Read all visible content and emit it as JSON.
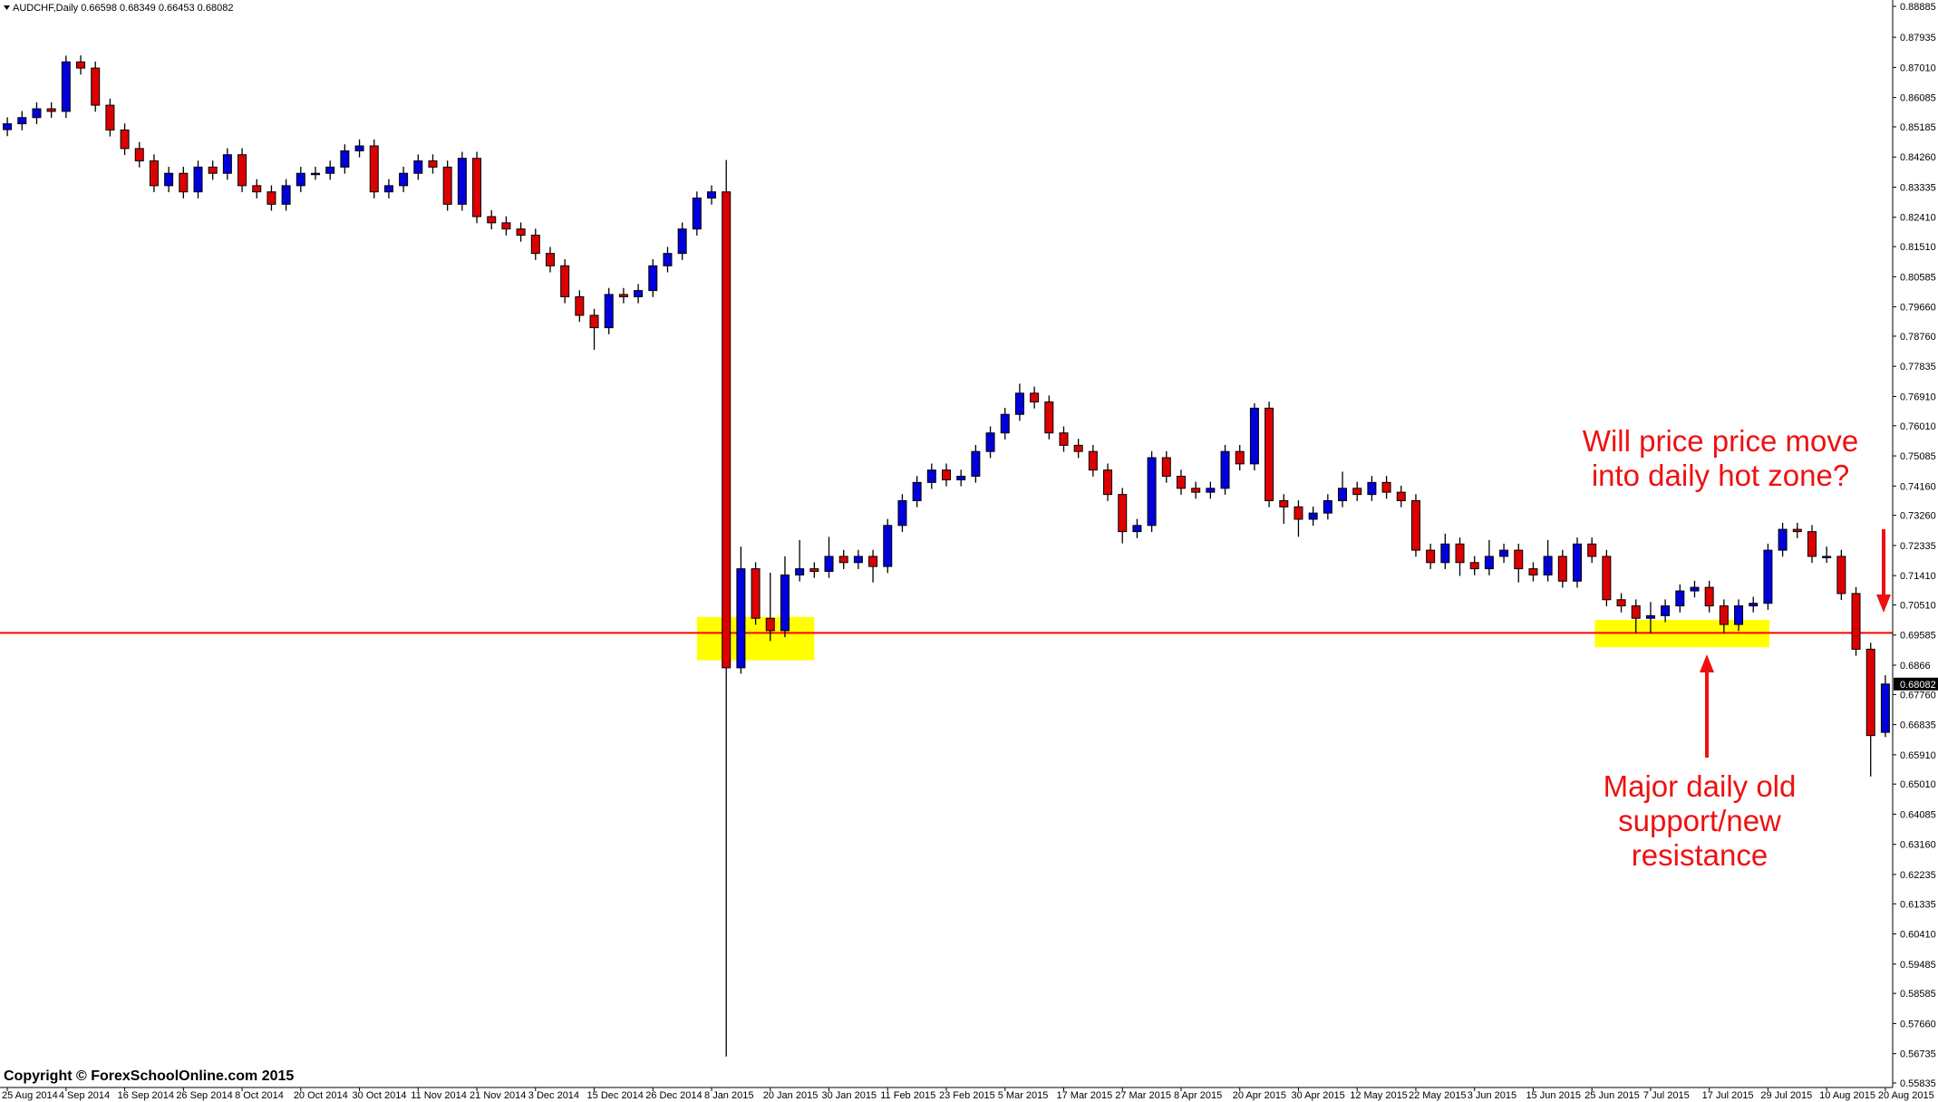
{
  "chart_data": {
    "type": "candlestick",
    "title": "AUDCHF,Daily",
    "candles": {
      "open": [
        0.851,
        0.8528,
        0.8547,
        0.8574,
        0.8566,
        0.8718,
        0.8699,
        0.8585,
        0.8509,
        0.8452,
        0.8414,
        0.8338,
        0.8376,
        0.8319,
        0.8395,
        0.8376,
        0.8433,
        0.8338,
        0.8319,
        0.8281,
        0.8338,
        0.8376,
        0.8376,
        0.8395,
        0.8445,
        0.846,
        0.8319,
        0.8338,
        0.8376,
        0.8414,
        0.8395,
        0.8281,
        0.8422,
        0.8243,
        0.8224,
        0.8205,
        0.8186,
        0.813,
        0.8092,
        0.7997,
        0.794,
        0.7902,
        0.8004,
        0.7997,
        0.8016,
        0.8092,
        0.813,
        0.8205,
        0.83,
        0.8319,
        0.6858,
        0.7162,
        0.701,
        0.6972,
        0.7143,
        0.7162,
        0.7154,
        0.72,
        0.7181,
        0.72,
        0.7169,
        0.7295,
        0.7371,
        0.7427,
        0.7465,
        0.7435,
        0.7446,
        0.7522,
        0.7579,
        0.7636,
        0.7701,
        0.7674,
        0.7579,
        0.7541,
        0.7522,
        0.7465,
        0.739,
        0.7276,
        0.7295,
        0.7503,
        0.7446,
        0.7409,
        0.7397,
        0.7409,
        0.7522,
        0.7484,
        0.7655,
        0.7371,
        0.7352,
        0.7314,
        0.7333,
        0.7371,
        0.7409,
        0.739,
        0.7427,
        0.7397,
        0.7371,
        0.7219,
        0.7181,
        0.7238,
        0.7181,
        0.7162,
        0.72,
        0.7219,
        0.7162,
        0.7143,
        0.72,
        0.7124,
        0.7238,
        0.72,
        0.7067,
        0.7048,
        0.701,
        0.7018,
        0.7048,
        0.7094,
        0.7105,
        0.7048,
        0.6991,
        0.7048,
        0.7056,
        0.7219,
        0.7283,
        0.7276,
        0.72,
        0.72,
        0.7086,
        0.6915,
        0.66598
      ],
      "high": [
        0.8548,
        0.8567,
        0.8594,
        0.8594,
        0.8737,
        0.8738,
        0.8719,
        0.8605,
        0.8529,
        0.8472,
        0.8434,
        0.8396,
        0.8396,
        0.8415,
        0.8415,
        0.8453,
        0.8453,
        0.8358,
        0.8339,
        0.8358,
        0.8396,
        0.8396,
        0.8415,
        0.8465,
        0.848,
        0.848,
        0.8358,
        0.8396,
        0.8434,
        0.8434,
        0.8415,
        0.8442,
        0.8442,
        0.8263,
        0.8244,
        0.8225,
        0.8206,
        0.815,
        0.8112,
        0.8017,
        0.796,
        0.8024,
        0.8024,
        0.8036,
        0.8112,
        0.815,
        0.8225,
        0.832,
        0.8339,
        0.8417,
        0.723,
        0.7182,
        0.715,
        0.72,
        0.725,
        0.7182,
        0.726,
        0.722,
        0.722,
        0.722,
        0.7315,
        0.7391,
        0.7447,
        0.7485,
        0.7485,
        0.7466,
        0.7542,
        0.7599,
        0.7656,
        0.773,
        0.7721,
        0.7694,
        0.7599,
        0.7561,
        0.7542,
        0.7485,
        0.741,
        0.7315,
        0.7523,
        0.7523,
        0.7466,
        0.7429,
        0.7429,
        0.7542,
        0.7542,
        0.767,
        0.7675,
        0.7391,
        0.7372,
        0.7353,
        0.7391,
        0.746,
        0.7429,
        0.7447,
        0.7447,
        0.7417,
        0.7391,
        0.7239,
        0.727,
        0.7258,
        0.7201,
        0.725,
        0.7239,
        0.7239,
        0.7182,
        0.725,
        0.722,
        0.7258,
        0.7258,
        0.722,
        0.7087,
        0.7068,
        0.706,
        0.7068,
        0.7114,
        0.7125,
        0.7125,
        0.7068,
        0.7068,
        0.7076,
        0.7239,
        0.7303,
        0.7303,
        0.7296,
        0.723,
        0.722,
        0.7106,
        0.6935,
        0.68349
      ],
      "low": [
        0.849,
        0.8508,
        0.8527,
        0.8546,
        0.8546,
        0.8679,
        0.8565,
        0.8489,
        0.8432,
        0.8394,
        0.8318,
        0.8318,
        0.8299,
        0.8299,
        0.8356,
        0.8356,
        0.8318,
        0.8299,
        0.8261,
        0.8261,
        0.8318,
        0.8356,
        0.8356,
        0.8375,
        0.8425,
        0.8299,
        0.8299,
        0.8318,
        0.8356,
        0.8375,
        0.8261,
        0.8261,
        0.8223,
        0.8204,
        0.8185,
        0.8166,
        0.811,
        0.8072,
        0.7977,
        0.792,
        0.7834,
        0.7882,
        0.7977,
        0.7977,
        0.7996,
        0.8072,
        0.811,
        0.8185,
        0.828,
        0.5665,
        0.684,
        0.699,
        0.694,
        0.6952,
        0.7123,
        0.7134,
        0.7134,
        0.7161,
        0.7161,
        0.712,
        0.7149,
        0.7275,
        0.7351,
        0.7407,
        0.7415,
        0.7415,
        0.7426,
        0.7502,
        0.7559,
        0.7616,
        0.7654,
        0.7559,
        0.7521,
        0.7502,
        0.7445,
        0.737,
        0.724,
        0.7256,
        0.7275,
        0.7426,
        0.7389,
        0.7377,
        0.7377,
        0.7389,
        0.7464,
        0.7464,
        0.7351,
        0.73,
        0.726,
        0.7294,
        0.7313,
        0.7351,
        0.737,
        0.737,
        0.7377,
        0.7351,
        0.7199,
        0.7161,
        0.7161,
        0.714,
        0.7142,
        0.7142,
        0.718,
        0.712,
        0.7123,
        0.7123,
        0.7104,
        0.7104,
        0.718,
        0.7047,
        0.7028,
        0.6965,
        0.6965,
        0.6998,
        0.7028,
        0.7074,
        0.7028,
        0.6965,
        0.6971,
        0.7028,
        0.7036,
        0.7199,
        0.7256,
        0.718,
        0.718,
        0.7066,
        0.6895,
        0.6524,
        0.66453
      ],
      "close": [
        0.8528,
        0.8547,
        0.8574,
        0.8566,
        0.8718,
        0.8699,
        0.8585,
        0.8509,
        0.8452,
        0.8414,
        0.8338,
        0.8376,
        0.8319,
        0.8395,
        0.8376,
        0.8433,
        0.8338,
        0.8319,
        0.8281,
        0.8338,
        0.8376,
        0.8376,
        0.8395,
        0.8445,
        0.846,
        0.8319,
        0.8338,
        0.8376,
        0.8414,
        0.8395,
        0.8281,
        0.8422,
        0.8243,
        0.8224,
        0.8205,
        0.8186,
        0.813,
        0.8092,
        0.7997,
        0.794,
        0.7902,
        0.8004,
        0.7997,
        0.8016,
        0.8092,
        0.813,
        0.8205,
        0.83,
        0.8319,
        0.6858,
        0.7162,
        0.701,
        0.6972,
        0.7143,
        0.7162,
        0.7154,
        0.72,
        0.7181,
        0.72,
        0.7169,
        0.7295,
        0.7371,
        0.7427,
        0.7465,
        0.7435,
        0.7446,
        0.7522,
        0.7579,
        0.7636,
        0.7701,
        0.7674,
        0.7579,
        0.7541,
        0.7522,
        0.7465,
        0.739,
        0.7276,
        0.7295,
        0.7503,
        0.7446,
        0.7409,
        0.7397,
        0.7409,
        0.7522,
        0.7484,
        0.7655,
        0.7371,
        0.7352,
        0.7314,
        0.7333,
        0.7371,
        0.7409,
        0.739,
        0.7427,
        0.7397,
        0.7371,
        0.7219,
        0.7181,
        0.7238,
        0.7181,
        0.7162,
        0.72,
        0.7219,
        0.7162,
        0.7143,
        0.72,
        0.7124,
        0.7238,
        0.72,
        0.7067,
        0.7048,
        0.701,
        0.7018,
        0.7048,
        0.7094,
        0.7105,
        0.7048,
        0.6991,
        0.7048,
        0.7056,
        0.7219,
        0.7283,
        0.7276,
        0.72,
        0.72,
        0.7086,
        0.6915,
        0.665,
        0.68082
      ]
    },
    "up_color": "#0000dd",
    "down_color": "#dd0000",
    "xlim": [
      -0.5,
      128.5
    ],
    "xticks": [
      {
        "value": 0,
        "label": "25 Aug 2014"
      },
      {
        "value": 4,
        "label": "4 Sep 2014"
      },
      {
        "value": 8,
        "label": "16 Sep 2014"
      },
      {
        "value": 12,
        "label": "26 Sep 2014"
      },
      {
        "value": 16,
        "label": "8 Oct 2014"
      },
      {
        "value": 20,
        "label": "20 Oct 2014"
      },
      {
        "value": 24,
        "label": "30 Oct 2014"
      },
      {
        "value": 28,
        "label": "11 Nov 2014"
      },
      {
        "value": 32,
        "label": "21 Nov 2014"
      },
      {
        "value": 36,
        "label": "3 Dec 2014"
      },
      {
        "value": 40,
        "label": "15 Dec 2014"
      },
      {
        "value": 44,
        "label": "26 Dec 2014"
      },
      {
        "value": 48,
        "label": "8 Jan 2015"
      },
      {
        "value": 52,
        "label": "20 Jan 2015"
      },
      {
        "value": 56,
        "label": "30 Jan 2015"
      },
      {
        "value": 60,
        "label": "11 Feb 2015"
      },
      {
        "value": 64,
        "label": "23 Feb 2015"
      },
      {
        "value": 68,
        "label": "5 Mar 2015"
      },
      {
        "value": 72,
        "label": "17 Mar 2015"
      },
      {
        "value": 76,
        "label": "27 Mar 2015"
      },
      {
        "value": 80,
        "label": "8 Apr 2015"
      },
      {
        "value": 84,
        "label": "20 Apr 2015"
      },
      {
        "value": 88,
        "label": "30 Apr 2015"
      },
      {
        "value": 92,
        "label": "12 May 2015"
      },
      {
        "value": 96,
        "label": "22 May 2015"
      },
      {
        "value": 100,
        "label": "3 Jun 2015"
      },
      {
        "value": 104,
        "label": "15 Jun 2015"
      },
      {
        "value": 108,
        "label": "25 Jun 2015"
      },
      {
        "value": 112,
        "label": "7 Jul 2015"
      },
      {
        "value": 116,
        "label": "17 Jul 2015"
      },
      {
        "value": 120,
        "label": "29 Jul 2015"
      },
      {
        "value": 124,
        "label": "10 Aug 2015"
      },
      {
        "value": 128,
        "label": "20 Aug 2015"
      }
    ],
    "ylim": [
      0.55835,
      0.88885
    ],
    "yticks": [
      0.88885,
      0.87935,
      {
        "value": 0.8701,
        "label": "0.87010"
      },
      0.86085,
      0.85185,
      {
        "value": 0.8426,
        "label": "0.84260"
      },
      0.83335,
      {
        "value": 0.8241,
        "label": "0.82410"
      },
      {
        "value": 0.8151,
        "label": "0.81510"
      },
      0.80585,
      {
        "value": 0.7966,
        "label": "0.79660"
      },
      {
        "value": 0.7876,
        "label": "0.78760"
      },
      0.77835,
      {
        "value": 0.7691,
        "label": "0.76910"
      },
      {
        "value": 0.7601,
        "label": "0.76010"
      },
      0.75085,
      {
        "value": 0.7416,
        "label": "0.74160"
      },
      {
        "value": 0.7326,
        "label": "0.73260"
      },
      0.72335,
      {
        "value": 0.7141,
        "label": "0.71410"
      },
      {
        "value": 0.7051,
        "label": "0.70510"
      },
      0.69585,
      0.6866,
      {
        "value": 0.6776,
        "label": "0.67760"
      },
      0.66835,
      {
        "value": 0.6591,
        "label": "0.65910"
      },
      {
        "value": 0.6501,
        "label": "0.65010"
      },
      0.64085,
      {
        "value": 0.6316,
        "label": "0.63160"
      },
      0.62235,
      0.61335,
      {
        "value": 0.6041,
        "label": "0.60410"
      },
      0.59485,
      0.58585,
      {
        "value": 0.5766,
        "label": "0.57660"
      },
      0.56735,
      0.55835
    ],
    "hline": {
      "value": 0.6965,
      "color": "#ff0000"
    },
    "zones": [
      {
        "x": [
          47,
          55
        ],
        "y": [
          0.6881,
          0.7014
        ],
        "color": "#ffff00"
      },
      {
        "x": [
          108.2,
          120.1
        ],
        "y": [
          0.6921,
          0.7005
        ],
        "color": "#ffff00"
      }
    ],
    "annotations": [
      [
        "Will price price move",
        "into daily hot zone?"
      ],
      [
        "Major daily old",
        "support/new",
        "resistance"
      ]
    ],
    "copyright": "Copyright © ForexSchoolOnline.com 2015"
  }
}
